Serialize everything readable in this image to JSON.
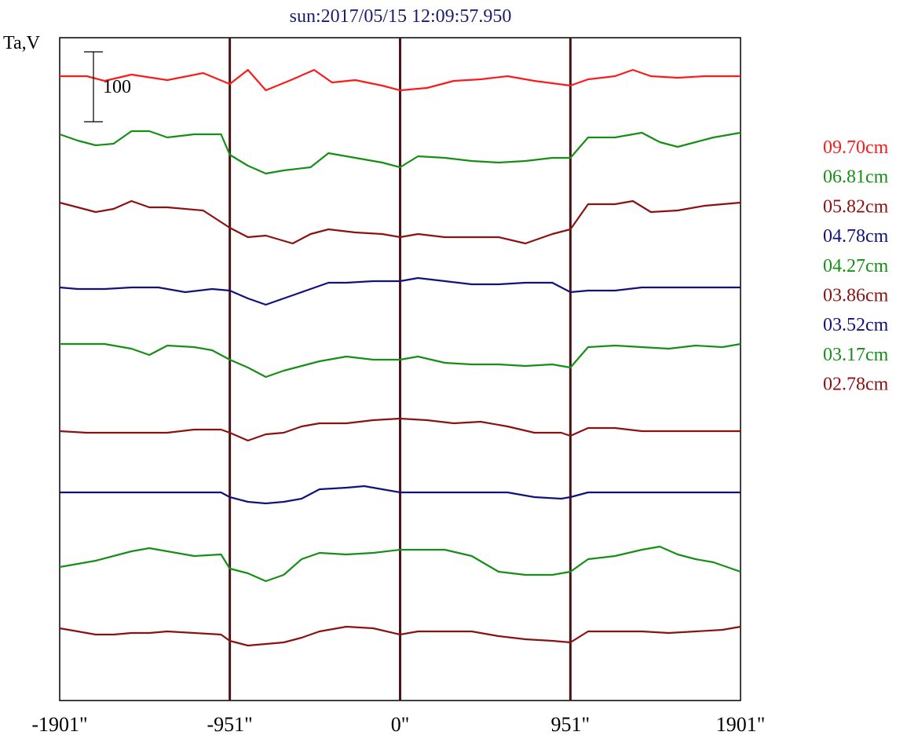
{
  "chart_data": {
    "type": "line",
    "title": "sun:2017/05/15 12:09:57.950",
    "ylabel": "Ta,V",
    "scale_bar_label": "100",
    "xlim": [
      -1901,
      1901
    ],
    "x_ticks": [
      {
        "value": -1901,
        "label": "-1901\""
      },
      {
        "value": -951,
        "label": "-951\""
      },
      {
        "value": 0,
        "label": "0\""
      },
      {
        "value": 951,
        "label": "951\""
      },
      {
        "value": 1901,
        "label": "1901\""
      }
    ],
    "vertical_markers": [
      -951,
      0,
      951
    ],
    "marker_color": "#4a1414",
    "legend_placement": "right",
    "series": [
      {
        "name": "09.70cm",
        "color": "#ff1a1a",
        "points": [
          [
            -1901,
            0
          ],
          [
            -1750,
            0
          ],
          [
            -1650,
            -6
          ],
          [
            -1500,
            2
          ],
          [
            -1300,
            -5
          ],
          [
            -1100,
            4
          ],
          [
            -951,
            -10
          ],
          [
            -850,
            8
          ],
          [
            -750,
            -18
          ],
          [
            -600,
            -4
          ],
          [
            -480,
            8
          ],
          [
            -380,
            -8
          ],
          [
            -250,
            -5
          ],
          [
            -100,
            -12
          ],
          [
            0,
            -18
          ],
          [
            150,
            -15
          ],
          [
            300,
            -6
          ],
          [
            450,
            -4
          ],
          [
            600,
            0
          ],
          [
            750,
            -6
          ],
          [
            951,
            -12
          ],
          [
            1050,
            -4
          ],
          [
            1200,
            0
          ],
          [
            1300,
            8
          ],
          [
            1400,
            0
          ],
          [
            1550,
            -2
          ],
          [
            1700,
            0
          ],
          [
            1901,
            0
          ]
        ]
      },
      {
        "name": "06.81cm",
        "color": "#168f16",
        "points": [
          [
            -1901,
            0
          ],
          [
            -1800,
            -8
          ],
          [
            -1700,
            -14
          ],
          [
            -1600,
            -12
          ],
          [
            -1500,
            4
          ],
          [
            -1400,
            4
          ],
          [
            -1300,
            -4
          ],
          [
            -1150,
            0
          ],
          [
            -1000,
            0
          ],
          [
            -951,
            -26
          ],
          [
            -850,
            -40
          ],
          [
            -750,
            -50
          ],
          [
            -650,
            -46
          ],
          [
            -500,
            -42
          ],
          [
            -400,
            -24
          ],
          [
            -250,
            -30
          ],
          [
            -100,
            -36
          ],
          [
            0,
            -42
          ],
          [
            100,
            -28
          ],
          [
            250,
            -30
          ],
          [
            400,
            -34
          ],
          [
            550,
            -36
          ],
          [
            700,
            -34
          ],
          [
            850,
            -30
          ],
          [
            951,
            -30
          ],
          [
            1050,
            -4
          ],
          [
            1200,
            -4
          ],
          [
            1350,
            2
          ],
          [
            1450,
            -10
          ],
          [
            1550,
            -16
          ],
          [
            1650,
            -10
          ],
          [
            1750,
            -4
          ],
          [
            1901,
            2
          ]
        ]
      },
      {
        "name": "05.82cm",
        "color": "#8b1212",
        "points": [
          [
            -1901,
            0
          ],
          [
            -1800,
            -6
          ],
          [
            -1700,
            -12
          ],
          [
            -1600,
            -8
          ],
          [
            -1500,
            2
          ],
          [
            -1400,
            -6
          ],
          [
            -1300,
            -6
          ],
          [
            -1100,
            -10
          ],
          [
            -951,
            -32
          ],
          [
            -850,
            -44
          ],
          [
            -750,
            -42
          ],
          [
            -600,
            -52
          ],
          [
            -500,
            -40
          ],
          [
            -400,
            -34
          ],
          [
            -250,
            -38
          ],
          [
            -100,
            -40
          ],
          [
            0,
            -44
          ],
          [
            100,
            -40
          ],
          [
            250,
            -44
          ],
          [
            400,
            -44
          ],
          [
            550,
            -44
          ],
          [
            700,
            -52
          ],
          [
            850,
            -40
          ],
          [
            951,
            -34
          ],
          [
            1050,
            -2
          ],
          [
            1200,
            -2
          ],
          [
            1300,
            2
          ],
          [
            1400,
            -12
          ],
          [
            1550,
            -10
          ],
          [
            1700,
            -4
          ],
          [
            1901,
            0
          ]
        ]
      },
      {
        "name": "04.78cm",
        "color": "#12127c",
        "points": [
          [
            -1901,
            0
          ],
          [
            -1800,
            -2
          ],
          [
            -1650,
            -2
          ],
          [
            -1500,
            0
          ],
          [
            -1350,
            0
          ],
          [
            -1200,
            -6
          ],
          [
            -1050,
            -2
          ],
          [
            -951,
            -4
          ],
          [
            -850,
            -14
          ],
          [
            -750,
            -22
          ],
          [
            -650,
            -14
          ],
          [
            -500,
            -2
          ],
          [
            -400,
            6
          ],
          [
            -300,
            6
          ],
          [
            -150,
            8
          ],
          [
            0,
            8
          ],
          [
            100,
            12
          ],
          [
            250,
            8
          ],
          [
            400,
            4
          ],
          [
            550,
            4
          ],
          [
            700,
            6
          ],
          [
            850,
            6
          ],
          [
            951,
            -6
          ],
          [
            1050,
            -4
          ],
          [
            1200,
            -4
          ],
          [
            1350,
            0
          ],
          [
            1500,
            0
          ],
          [
            1650,
            0
          ],
          [
            1800,
            0
          ],
          [
            1901,
            0
          ]
        ]
      },
      {
        "name": "04.27cm",
        "color": "#168f16",
        "points": [
          [
            -1901,
            0
          ],
          [
            -1800,
            0
          ],
          [
            -1650,
            0
          ],
          [
            -1500,
            -6
          ],
          [
            -1400,
            -14
          ],
          [
            -1300,
            -2
          ],
          [
            -1150,
            -4
          ],
          [
            -1050,
            -8
          ],
          [
            -951,
            -20
          ],
          [
            -850,
            -30
          ],
          [
            -750,
            -42
          ],
          [
            -650,
            -34
          ],
          [
            -550,
            -28
          ],
          [
            -450,
            -22
          ],
          [
            -300,
            -16
          ],
          [
            -150,
            -20
          ],
          [
            0,
            -20
          ],
          [
            100,
            -16
          ],
          [
            250,
            -24
          ],
          [
            400,
            -26
          ],
          [
            550,
            -26
          ],
          [
            700,
            -28
          ],
          [
            850,
            -26
          ],
          [
            951,
            -30
          ],
          [
            1050,
            -4
          ],
          [
            1200,
            -2
          ],
          [
            1350,
            -4
          ],
          [
            1500,
            -6
          ],
          [
            1650,
            -2
          ],
          [
            1800,
            -4
          ],
          [
            1901,
            0
          ]
        ]
      },
      {
        "name": "03.86cm",
        "color": "#8b1212",
        "points": [
          [
            -1901,
            0
          ],
          [
            -1750,
            -2
          ],
          [
            -1600,
            -2
          ],
          [
            -1450,
            -2
          ],
          [
            -1300,
            -2
          ],
          [
            -1150,
            2
          ],
          [
            -1000,
            2
          ],
          [
            -951,
            -2
          ],
          [
            -850,
            -12
          ],
          [
            -750,
            -4
          ],
          [
            -650,
            -2
          ],
          [
            -550,
            6
          ],
          [
            -450,
            10
          ],
          [
            -300,
            10
          ],
          [
            -150,
            14
          ],
          [
            0,
            16
          ],
          [
            150,
            14
          ],
          [
            300,
            10
          ],
          [
            450,
            12
          ],
          [
            600,
            6
          ],
          [
            750,
            -2
          ],
          [
            900,
            -2
          ],
          [
            951,
            -6
          ],
          [
            1050,
            4
          ],
          [
            1200,
            4
          ],
          [
            1350,
            0
          ],
          [
            1500,
            0
          ],
          [
            1650,
            0
          ],
          [
            1800,
            0
          ],
          [
            1901,
            0
          ]
        ]
      },
      {
        "name": "03.52cm",
        "color": "#12127c",
        "points": [
          [
            -1901,
            0
          ],
          [
            -1750,
            0
          ],
          [
            -1600,
            0
          ],
          [
            -1450,
            0
          ],
          [
            -1300,
            0
          ],
          [
            -1150,
            0
          ],
          [
            -1000,
            0
          ],
          [
            -951,
            -6
          ],
          [
            -850,
            -12
          ],
          [
            -750,
            -14
          ],
          [
            -650,
            -12
          ],
          [
            -550,
            -8
          ],
          [
            -450,
            4
          ],
          [
            -300,
            6
          ],
          [
            -200,
            8
          ],
          [
            -100,
            4
          ],
          [
            0,
            0
          ],
          [
            150,
            0
          ],
          [
            300,
            0
          ],
          [
            450,
            0
          ],
          [
            600,
            0
          ],
          [
            750,
            -6
          ],
          [
            900,
            -8
          ],
          [
            951,
            -6
          ],
          [
            1050,
            0
          ],
          [
            1200,
            0
          ],
          [
            1350,
            0
          ],
          [
            1500,
            0
          ],
          [
            1650,
            0
          ],
          [
            1800,
            0
          ],
          [
            1901,
            0
          ]
        ]
      },
      {
        "name": "03.17cm",
        "color": "#168f16",
        "points": [
          [
            -1901,
            0
          ],
          [
            -1800,
            4
          ],
          [
            -1700,
            8
          ],
          [
            -1600,
            14
          ],
          [
            -1500,
            20
          ],
          [
            -1400,
            24
          ],
          [
            -1300,
            20
          ],
          [
            -1150,
            14
          ],
          [
            -1000,
            16
          ],
          [
            -951,
            -2
          ],
          [
            -850,
            -8
          ],
          [
            -750,
            -18
          ],
          [
            -650,
            -10
          ],
          [
            -550,
            10
          ],
          [
            -450,
            18
          ],
          [
            -300,
            16
          ],
          [
            -150,
            18
          ],
          [
            0,
            22
          ],
          [
            100,
            22
          ],
          [
            250,
            22
          ],
          [
            400,
            14
          ],
          [
            550,
            -6
          ],
          [
            700,
            -10
          ],
          [
            850,
            -10
          ],
          [
            951,
            -6
          ],
          [
            1050,
            10
          ],
          [
            1200,
            14
          ],
          [
            1350,
            22
          ],
          [
            1450,
            26
          ],
          [
            1550,
            16
          ],
          [
            1650,
            10
          ],
          [
            1750,
            6
          ],
          [
            1901,
            -6
          ]
        ]
      },
      {
        "name": "02.78cm",
        "color": "#8b1212",
        "points": [
          [
            -1901,
            0
          ],
          [
            -1800,
            -4
          ],
          [
            -1700,
            -8
          ],
          [
            -1600,
            -8
          ],
          [
            -1500,
            -6
          ],
          [
            -1400,
            -6
          ],
          [
            -1300,
            -4
          ],
          [
            -1150,
            -6
          ],
          [
            -1000,
            -8
          ],
          [
            -951,
            -16
          ],
          [
            -850,
            -22
          ],
          [
            -750,
            -20
          ],
          [
            -650,
            -18
          ],
          [
            -550,
            -12
          ],
          [
            -450,
            -4
          ],
          [
            -300,
            2
          ],
          [
            -150,
            0
          ],
          [
            0,
            -8
          ],
          [
            100,
            -4
          ],
          [
            250,
            -4
          ],
          [
            400,
            -4
          ],
          [
            550,
            -10
          ],
          [
            700,
            -14
          ],
          [
            850,
            -16
          ],
          [
            951,
            -18
          ],
          [
            1050,
            -4
          ],
          [
            1200,
            -4
          ],
          [
            1350,
            -4
          ],
          [
            1500,
            -6
          ],
          [
            1650,
            -4
          ],
          [
            1800,
            -2
          ],
          [
            1901,
            2
          ]
        ]
      }
    ]
  }
}
